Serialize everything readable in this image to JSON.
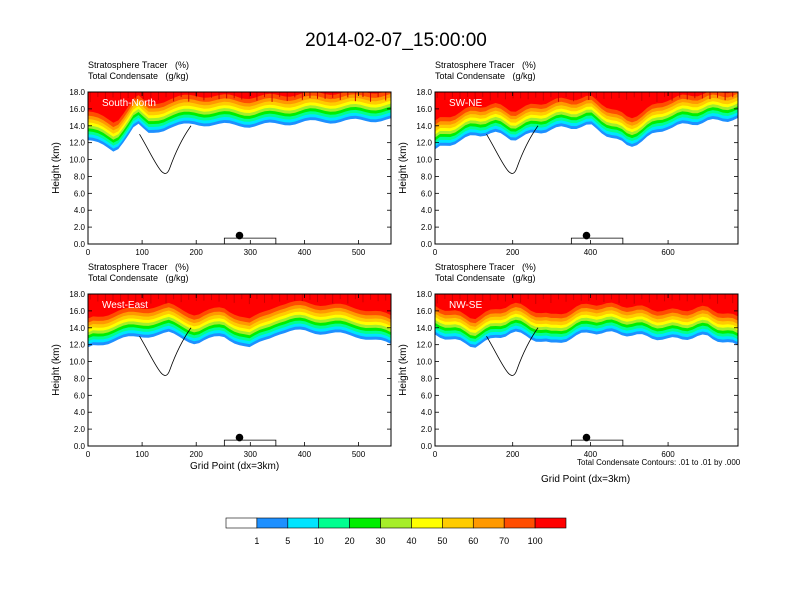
{
  "title": "2014-02-07_15:00:00",
  "caption_line1": "Stratosphere Tracer   (%)",
  "caption_line2": "Total Condensate   (g/kg)",
  "ylabel": "Height (km)",
  "xlabel": "Grid Point (dx=3km)",
  "contour_note": "Total Condensate Contours: .01 to .01 by .000",
  "colorbar": {
    "labels": [
      "1",
      "5",
      "10",
      "20",
      "30",
      "40",
      "50",
      "60",
      "70",
      "100"
    ],
    "colors": [
      "#ffffff",
      "#1e90ff",
      "#00e5ff",
      "#00ff90",
      "#00ee00",
      "#a6ee2a",
      "#ffff00",
      "#ffcc00",
      "#ff9900",
      "#ff4d00",
      "#ff0000"
    ]
  },
  "chart_data": [
    {
      "type": "heatmap",
      "name": "South-North",
      "xlim": [
        0,
        560
      ],
      "xticks": [
        0,
        100,
        200,
        300,
        400,
        500
      ],
      "ylim": [
        0,
        18
      ],
      "yticks": [
        "0.0",
        "2.0",
        "4.0",
        "6.0",
        "8.0",
        "10.0",
        "12.0",
        "14.0",
        "16.0",
        "18.0"
      ],
      "marker_x": 280,
      "tracer_profile_x": [
        0,
        50,
        90,
        110,
        150,
        200,
        300,
        400,
        500,
        560
      ],
      "tracer_base_km": [
        12.3,
        11.0,
        14.2,
        13.0,
        13.8,
        14.2,
        14.0,
        14.4,
        14.6,
        14.7
      ]
    },
    {
      "type": "heatmap",
      "name": "SW-NE",
      "xlim": [
        0,
        780
      ],
      "xticks": [
        0,
        200,
        400,
        600
      ],
      "ylim": [
        0,
        18
      ],
      "yticks": [
        "0.0",
        "2.0",
        "4.0",
        "6.0",
        "8.0",
        "10.0",
        "12.0",
        "14.0",
        "16.0",
        "18.0"
      ],
      "marker_x": 390,
      "tracer_profile_x": [
        0,
        100,
        150,
        200,
        300,
        400,
        500,
        600,
        700,
        780
      ],
      "tracer_base_km": [
        11.2,
        12.8,
        13.2,
        12.4,
        13.6,
        14.0,
        11.5,
        13.8,
        14.5,
        14.8
      ]
    },
    {
      "type": "heatmap",
      "name": "West-East",
      "xlim": [
        0,
        560
      ],
      "xticks": [
        0,
        100,
        200,
        300,
        400,
        500
      ],
      "ylim": [
        0,
        18
      ],
      "yticks": [
        "0.0",
        "2.0",
        "4.0",
        "6.0",
        "8.0",
        "10.0",
        "12.0",
        "14.0",
        "16.0",
        "18.0"
      ],
      "marker_x": 280,
      "tracer_profile_x": [
        0,
        50,
        100,
        150,
        200,
        250,
        300,
        350,
        400,
        500,
        560
      ],
      "tracer_base_km": [
        11.7,
        12.5,
        13.0,
        13.3,
        12.2,
        13.0,
        11.5,
        13.4,
        13.6,
        13.0,
        12.0
      ]
    },
    {
      "type": "heatmap",
      "name": "NW-SE",
      "xlim": [
        0,
        780
      ],
      "xticks": [
        0,
        200,
        400,
        600
      ],
      "ylim": [
        0,
        18
      ],
      "yticks": [
        "0.0",
        "2.0",
        "4.0",
        "6.0",
        "8.0",
        "10.0",
        "12.0",
        "14.0",
        "16.0",
        "18.0"
      ],
      "marker_x": 390,
      "tracer_profile_x": [
        0,
        100,
        200,
        300,
        400,
        500,
        600,
        700,
        780
      ],
      "tracer_base_km": [
        13.2,
        11.8,
        13.5,
        12.0,
        13.5,
        13.2,
        12.6,
        13.0,
        11.8
      ]
    }
  ]
}
